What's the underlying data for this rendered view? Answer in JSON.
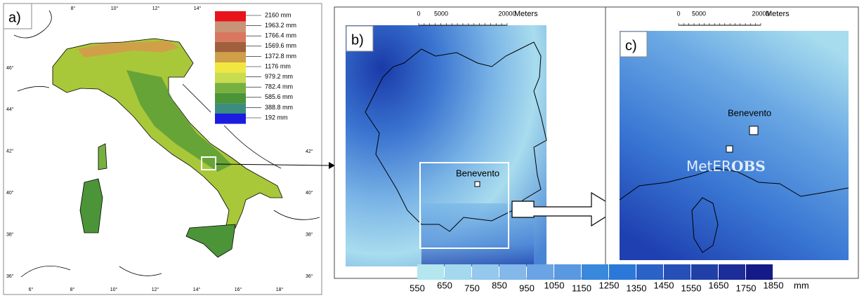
{
  "panel_a": {
    "label": "a)",
    "legend": {
      "labels": [
        "2160 mm",
        "1963.2 mm",
        "1766.4 mm",
        "1569.6 mm",
        "1372.8 mm",
        "1176 mm",
        "979.2 mm",
        "782.4 mm",
        "585.6 mm",
        "388.8 mm",
        "192 mm"
      ],
      "colors": [
        "#e8141c",
        "#c89478",
        "#d87860",
        "#a0603c",
        "#d0a048",
        "#f0e840",
        "#c8dc50",
        "#78b040",
        "#4c9438",
        "#3c8c80",
        "#1c1ce0"
      ]
    },
    "lat_left": [
      "46°",
      "44°",
      "42°",
      "40°",
      "38°",
      "36°"
    ],
    "lat_right": [
      "42°",
      "40°",
      "38°",
      "36°"
    ],
    "lon_top": [
      "8°",
      "10°",
      "12°",
      "14°"
    ],
    "lon_bottom": [
      "6°",
      "8°",
      "10°",
      "12°",
      "14°",
      "16°",
      "18°"
    ]
  },
  "panel_b": {
    "label": "b)",
    "scale": {
      "ticks": [
        "0",
        "5000",
        "20000"
      ],
      "unit": "Meters"
    },
    "town": "Benevento"
  },
  "panel_c": {
    "label": "c)",
    "scale": {
      "ticks": [
        "0",
        "5000",
        "20000"
      ],
      "unit": "Meters"
    },
    "town": "Benevento",
    "watermark": {
      "main": "MetER",
      "bold": "OBS"
    }
  },
  "colorbar": {
    "labels": [
      "550",
      "650",
      "750",
      "850",
      "950",
      "1050",
      "1150",
      "1250",
      "1350",
      "1450",
      "1550",
      "1650",
      "1750",
      "1850"
    ],
    "colors": [
      "#b3e6ee",
      "#a4d8ee",
      "#94c8ec",
      "#84b8e8",
      "#6aa4e4",
      "#5a98e0",
      "#3a88dc",
      "#2c78d8",
      "#2a62c8",
      "#2650b8",
      "#2040a8",
      "#1c2c98",
      "#141a88"
    ],
    "unit": "mm"
  }
}
